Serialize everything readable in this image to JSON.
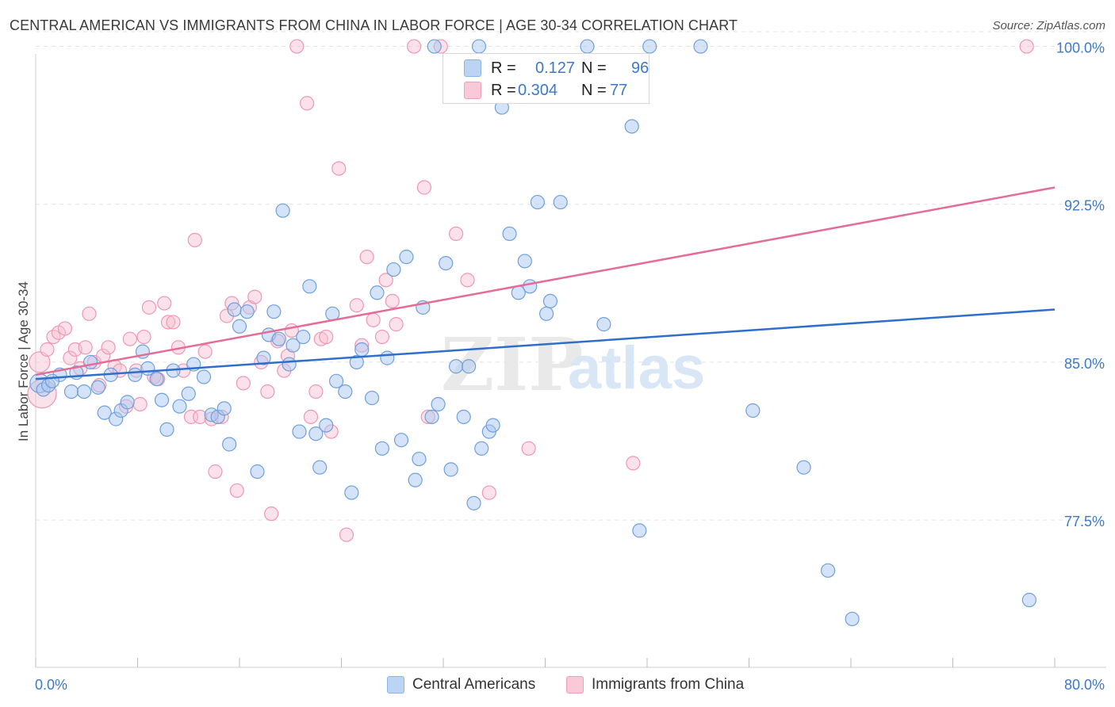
{
  "header": {
    "title": "CENTRAL AMERICAN VS IMMIGRANTS FROM CHINA IN LABOR FORCE | AGE 30-34 CORRELATION CHART",
    "source": "Source: ZipAtlas.com"
  },
  "watermark": {
    "zip": "ZIP",
    "atlas": "atlas"
  },
  "legend": {
    "series1": {
      "r_label": "R =",
      "r_value": "0.127",
      "n_label": "N =",
      "n_value": "96"
    },
    "series2": {
      "r_label": "R =",
      "r_value": "0.304",
      "n_label": "N =",
      "n_value": "77"
    }
  },
  "bottom_legend": {
    "series1": "Central Americans",
    "series2": "Immigrants from China"
  },
  "colors": {
    "blue_fill": "#a9c8ef",
    "blue_stroke": "#6fa0dc",
    "blue_line": "#2f6fcc",
    "pink_fill": "#f6bfd0",
    "pink_stroke": "#ef97b3",
    "pink_line": "#e56c96",
    "tick_label": "#3c79c9",
    "grid": "#e3e3e3"
  },
  "chart_data": {
    "type": "scatter",
    "title": "CENTRAL AMERICAN VS IMMIGRANTS FROM CHINA IN LABOR FORCE | AGE 30-34 CORRELATION CHART",
    "xlabel": "",
    "ylabel": "In Labor Force | Age 30-34",
    "xlim": [
      0,
      80
    ],
    "ylim": [
      70.5,
      101
    ],
    "x_tick_labels": [
      "0.0%",
      "80.0%"
    ],
    "y_ticks": [
      77.5,
      85.0,
      92.5,
      100.0
    ],
    "y_tick_labels": [
      "77.5%",
      "85.0%",
      "92.5%",
      "100.0%"
    ],
    "grid": true,
    "series": [
      {
        "name": "Central Americans",
        "R": 0.127,
        "N": 96,
        "trend": {
          "x": [
            0,
            80
          ],
          "y": [
            84.2,
            87.5
          ]
        },
        "points": [
          [
            0.3,
            84.0
          ],
          [
            0.6,
            83.7
          ],
          [
            1.0,
            83.9
          ],
          [
            1.9,
            84.4
          ],
          [
            2.8,
            83.6
          ],
          [
            3.2,
            84.5
          ],
          [
            3.8,
            83.6
          ],
          [
            4.3,
            85.0
          ],
          [
            4.9,
            83.8
          ],
          [
            5.4,
            82.6
          ],
          [
            5.9,
            84.4
          ],
          [
            6.3,
            82.3
          ],
          [
            6.7,
            82.7
          ],
          [
            7.2,
            83.1
          ],
          [
            7.8,
            84.4
          ],
          [
            8.4,
            85.5
          ],
          [
            8.8,
            84.7
          ],
          [
            9.5,
            84.2
          ],
          [
            9.9,
            83.2
          ],
          [
            10.3,
            81.8
          ],
          [
            10.8,
            84.6
          ],
          [
            11.3,
            82.9
          ],
          [
            12.0,
            83.5
          ],
          [
            12.4,
            84.9
          ],
          [
            13.2,
            84.3
          ],
          [
            13.8,
            82.5
          ],
          [
            14.3,
            82.4
          ],
          [
            14.8,
            82.8
          ],
          [
            15.2,
            81.1
          ],
          [
            15.6,
            87.5
          ],
          [
            16.0,
            86.7
          ],
          [
            16.6,
            87.4
          ],
          [
            17.4,
            79.8
          ],
          [
            17.9,
            85.2
          ],
          [
            18.3,
            86.3
          ],
          [
            18.7,
            87.4
          ],
          [
            19.1,
            86.1
          ],
          [
            19.4,
            92.2
          ],
          [
            19.9,
            84.9
          ],
          [
            20.2,
            85.8
          ],
          [
            20.7,
            81.7
          ],
          [
            21.0,
            86.2
          ],
          [
            21.5,
            88.6
          ],
          [
            22.0,
            81.6
          ],
          [
            22.3,
            80.0
          ],
          [
            22.8,
            82.0
          ],
          [
            23.3,
            87.3
          ],
          [
            23.6,
            84.1
          ],
          [
            24.3,
            83.6
          ],
          [
            24.8,
            78.8
          ],
          [
            25.2,
            85.0
          ],
          [
            25.6,
            85.6
          ],
          [
            26.4,
            83.3
          ],
          [
            26.8,
            88.3
          ],
          [
            27.2,
            80.9
          ],
          [
            27.6,
            85.2
          ],
          [
            28.1,
            89.4
          ],
          [
            28.7,
            81.3
          ],
          [
            29.1,
            90.0
          ],
          [
            29.8,
            79.4
          ],
          [
            30.1,
            80.4
          ],
          [
            30.4,
            87.6
          ],
          [
            31.1,
            82.4
          ],
          [
            31.6,
            83.0
          ],
          [
            32.2,
            89.7
          ],
          [
            32.6,
            79.9
          ],
          [
            33.0,
            84.8
          ],
          [
            33.6,
            82.4
          ],
          [
            34.0,
            84.8
          ],
          [
            34.4,
            78.3
          ],
          [
            35.0,
            80.9
          ],
          [
            35.6,
            81.7
          ],
          [
            35.9,
            82.0
          ],
          [
            36.6,
            97.1
          ],
          [
            37.2,
            91.1
          ],
          [
            37.9,
            88.3
          ],
          [
            38.4,
            89.8
          ],
          [
            38.8,
            88.6
          ],
          [
            39.4,
            92.6
          ],
          [
            40.1,
            87.3
          ],
          [
            40.4,
            87.9
          ],
          [
            41.2,
            92.6
          ],
          [
            43.3,
            100.0
          ],
          [
            44.6,
            86.8
          ],
          [
            46.8,
            96.2
          ],
          [
            47.4,
            77.0
          ],
          [
            48.2,
            100.0
          ],
          [
            52.2,
            100.0
          ],
          [
            56.3,
            82.7
          ],
          [
            60.3,
            80.0
          ],
          [
            62.2,
            75.1
          ],
          [
            64.1,
            72.8
          ],
          [
            78.0,
            73.7
          ],
          [
            31.3,
            100.0
          ],
          [
            34.8,
            100.0
          ],
          [
            1.3,
            84.1
          ]
        ]
      },
      {
        "name": "Immigrants from China",
        "R": 0.304,
        "N": 77,
        "trend": {
          "x": [
            0,
            80
          ],
          "y": [
            84.4,
            93.3
          ]
        },
        "points": [
          [
            0.3,
            85.0
          ],
          [
            0.5,
            83.5
          ],
          [
            0.9,
            85.6
          ],
          [
            1.4,
            86.2
          ],
          [
            1.8,
            86.4
          ],
          [
            2.3,
            86.6
          ],
          [
            2.7,
            85.2
          ],
          [
            3.1,
            85.6
          ],
          [
            3.5,
            84.7
          ],
          [
            3.9,
            85.7
          ],
          [
            4.2,
            87.3
          ],
          [
            4.6,
            85.0
          ],
          [
            5.0,
            83.9
          ],
          [
            5.3,
            85.3
          ],
          [
            5.7,
            85.7
          ],
          [
            6.2,
            84.8
          ],
          [
            6.6,
            84.6
          ],
          [
            7.1,
            82.9
          ],
          [
            7.4,
            86.1
          ],
          [
            7.9,
            84.6
          ],
          [
            8.2,
            83.0
          ],
          [
            8.5,
            86.2
          ],
          [
            8.9,
            87.6
          ],
          [
            9.3,
            84.3
          ],
          [
            9.6,
            84.2
          ],
          [
            10.1,
            87.8
          ],
          [
            10.4,
            86.9
          ],
          [
            10.8,
            86.9
          ],
          [
            11.2,
            85.7
          ],
          [
            11.6,
            84.6
          ],
          [
            12.2,
            82.4
          ],
          [
            12.5,
            90.8
          ],
          [
            12.9,
            82.4
          ],
          [
            13.3,
            85.5
          ],
          [
            13.8,
            82.3
          ],
          [
            14.1,
            79.8
          ],
          [
            14.6,
            82.4
          ],
          [
            15.0,
            87.2
          ],
          [
            15.4,
            87.8
          ],
          [
            15.8,
            78.9
          ],
          [
            16.3,
            84.0
          ],
          [
            16.8,
            87.6
          ],
          [
            17.2,
            88.1
          ],
          [
            17.7,
            85.0
          ],
          [
            18.2,
            83.6
          ],
          [
            18.5,
            77.8
          ],
          [
            19.0,
            86.0
          ],
          [
            19.5,
            84.6
          ],
          [
            19.8,
            85.3
          ],
          [
            20.1,
            86.5
          ],
          [
            20.5,
            100.0
          ],
          [
            21.3,
            97.3
          ],
          [
            21.6,
            82.4
          ],
          [
            22.0,
            83.6
          ],
          [
            22.4,
            86.1
          ],
          [
            22.8,
            86.2
          ],
          [
            23.2,
            81.7
          ],
          [
            23.8,
            94.2
          ],
          [
            24.4,
            76.8
          ],
          [
            25.2,
            87.7
          ],
          [
            25.6,
            85.8
          ],
          [
            26.0,
            90.0
          ],
          [
            26.5,
            87.0
          ],
          [
            27.2,
            86.2
          ],
          [
            27.5,
            88.9
          ],
          [
            28.0,
            87.9
          ],
          [
            28.3,
            86.8
          ],
          [
            29.7,
            100.0
          ],
          [
            30.5,
            93.3
          ],
          [
            30.8,
            82.4
          ],
          [
            33.0,
            91.1
          ],
          [
            33.9,
            88.9
          ],
          [
            35.6,
            78.8
          ],
          [
            38.7,
            80.9
          ],
          [
            46.9,
            80.2
          ],
          [
            77.8,
            100.0
          ],
          [
            31.8,
            100.0
          ]
        ]
      }
    ]
  }
}
